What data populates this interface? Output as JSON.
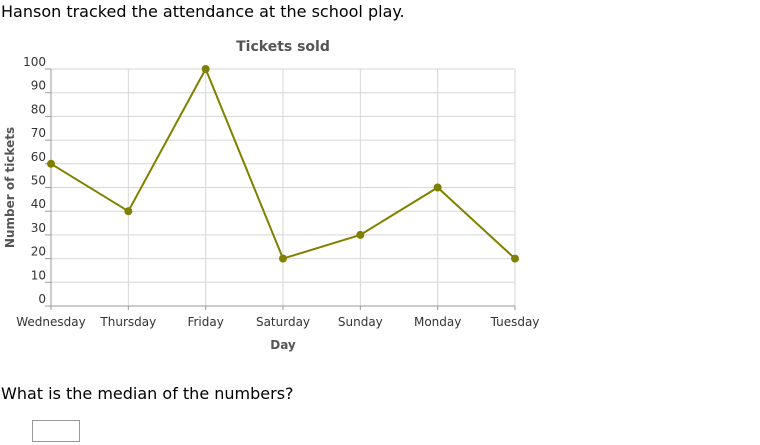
{
  "prompt": "Hanson tracked the attendance at the school play.",
  "question": "What is the median of the numbers?",
  "answer": {
    "value": ""
  },
  "chart_data": {
    "type": "line",
    "title": "Tickets sold",
    "xlabel": "Day",
    "ylabel": "Number of tickets",
    "categories": [
      "Wednesday",
      "Thursday",
      "Friday",
      "Saturday",
      "Sunday",
      "Monday",
      "Tuesday"
    ],
    "series": [
      {
        "values": [
          60,
          40,
          100,
          20,
          30,
          50,
          20
        ]
      }
    ],
    "ylim": [
      0,
      100
    ],
    "yticks": [
      "0",
      "10",
      "20",
      "30",
      "40",
      "50",
      "60",
      "70",
      "80",
      "90",
      "100"
    ],
    "grid": true,
    "line_color": "#808000"
  }
}
